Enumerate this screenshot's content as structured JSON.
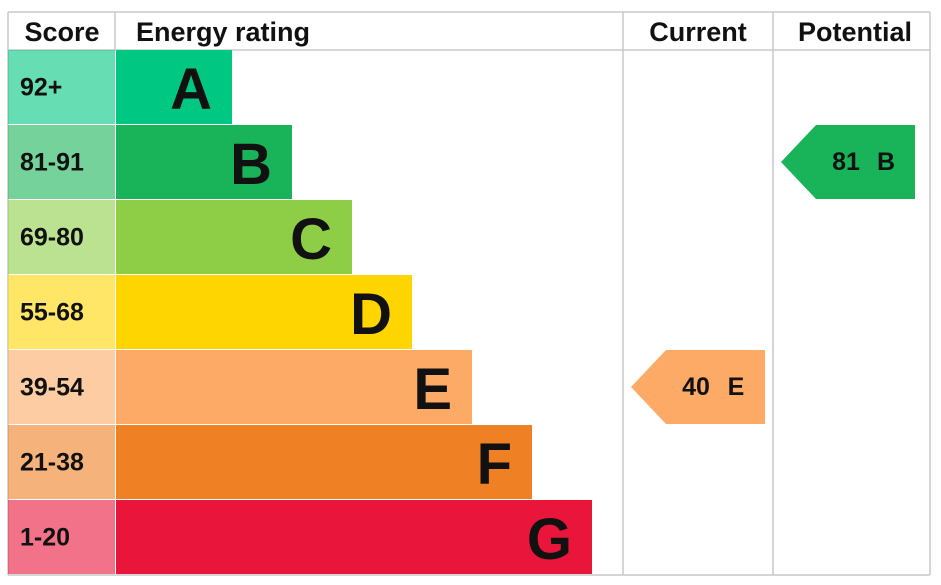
{
  "header": {
    "score": "Score",
    "rating": "Energy rating",
    "current": "Current",
    "potential": "Potential"
  },
  "bands": [
    {
      "score": "92+",
      "letter": "A",
      "color": "#00c781"
    },
    {
      "score": "81-91",
      "letter": "B",
      "color": "#19b459"
    },
    {
      "score": "69-80",
      "letter": "C",
      "color": "#8dce46"
    },
    {
      "score": "55-68",
      "letter": "D",
      "color": "#ffd500"
    },
    {
      "score": "39-54",
      "letter": "E",
      "color": "#fcaa65"
    },
    {
      "score": "21-38",
      "letter": "F",
      "color": "#ef8023"
    },
    {
      "score": "1-20",
      "letter": "G",
      "color": "#e9153b"
    }
  ],
  "current": {
    "value": 40,
    "letter": "E"
  },
  "potential": {
    "value": 81,
    "letter": "B"
  }
}
